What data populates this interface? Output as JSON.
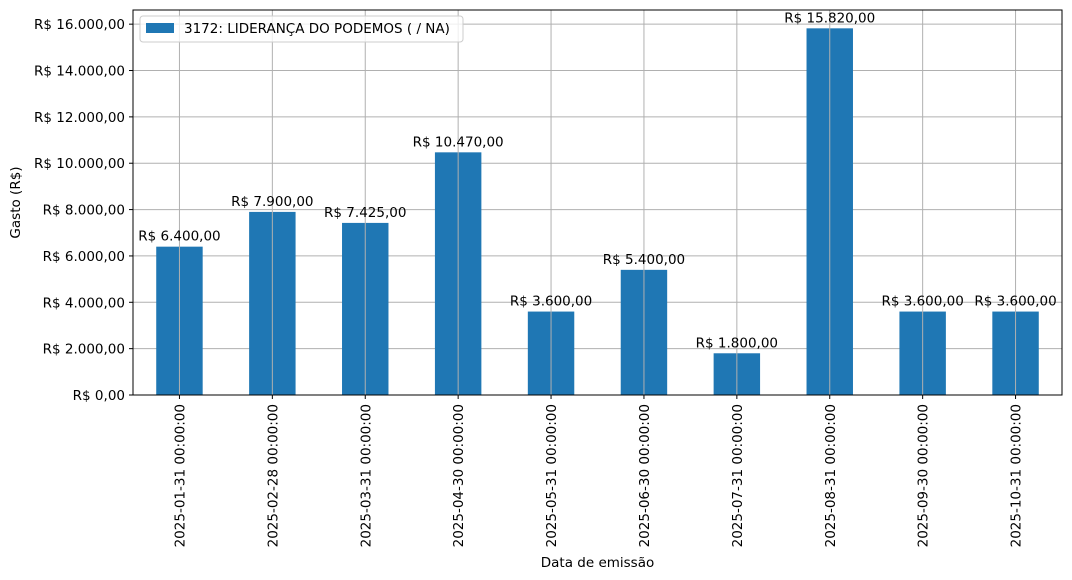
{
  "chart_data": {
    "type": "bar",
    "categories": [
      "2025-01-31 00:00:00",
      "2025-02-28 00:00:00",
      "2025-03-31 00:00:00",
      "2025-04-30 00:00:00",
      "2025-05-31 00:00:00",
      "2025-06-30 00:00:00",
      "2025-07-31 00:00:00",
      "2025-08-31 00:00:00",
      "2025-09-30 00:00:00",
      "2025-10-31 00:00:00"
    ],
    "series": [
      {
        "name": "3172: LIDERANÇA DO PODEMOS ( / NA)",
        "values": [
          6400,
          7900,
          7425,
          10470,
          3600,
          5400,
          1800,
          15820,
          3600,
          3600
        ],
        "color": "#1f77b4"
      }
    ],
    "data_labels": [
      "R$ 6.400,00",
      "R$ 7.900,00",
      "R$ 7.425,00",
      "R$ 10.470,00",
      "R$ 3.600,00",
      "R$ 5.400,00",
      "R$ 1.800,00",
      "R$ 15.820,00",
      "R$ 3.600,00",
      "R$ 3.600,00"
    ],
    "xlabel": "Data de emissão",
    "ylabel": "Gasto (R$)",
    "ylim": [
      0,
      16611
    ],
    "yticks": [
      0,
      2000,
      4000,
      6000,
      8000,
      10000,
      12000,
      14000,
      16000
    ],
    "ytick_labels": [
      "R$ 0,00",
      "R$ 2.000,00",
      "R$ 4.000,00",
      "R$ 6.000,00",
      "R$ 8.000,00",
      "R$ 10.000,00",
      "R$ 12.000,00",
      "R$ 14.000,00",
      "R$ 16.000,00"
    ],
    "grid": true,
    "legend_position": "top-left"
  }
}
